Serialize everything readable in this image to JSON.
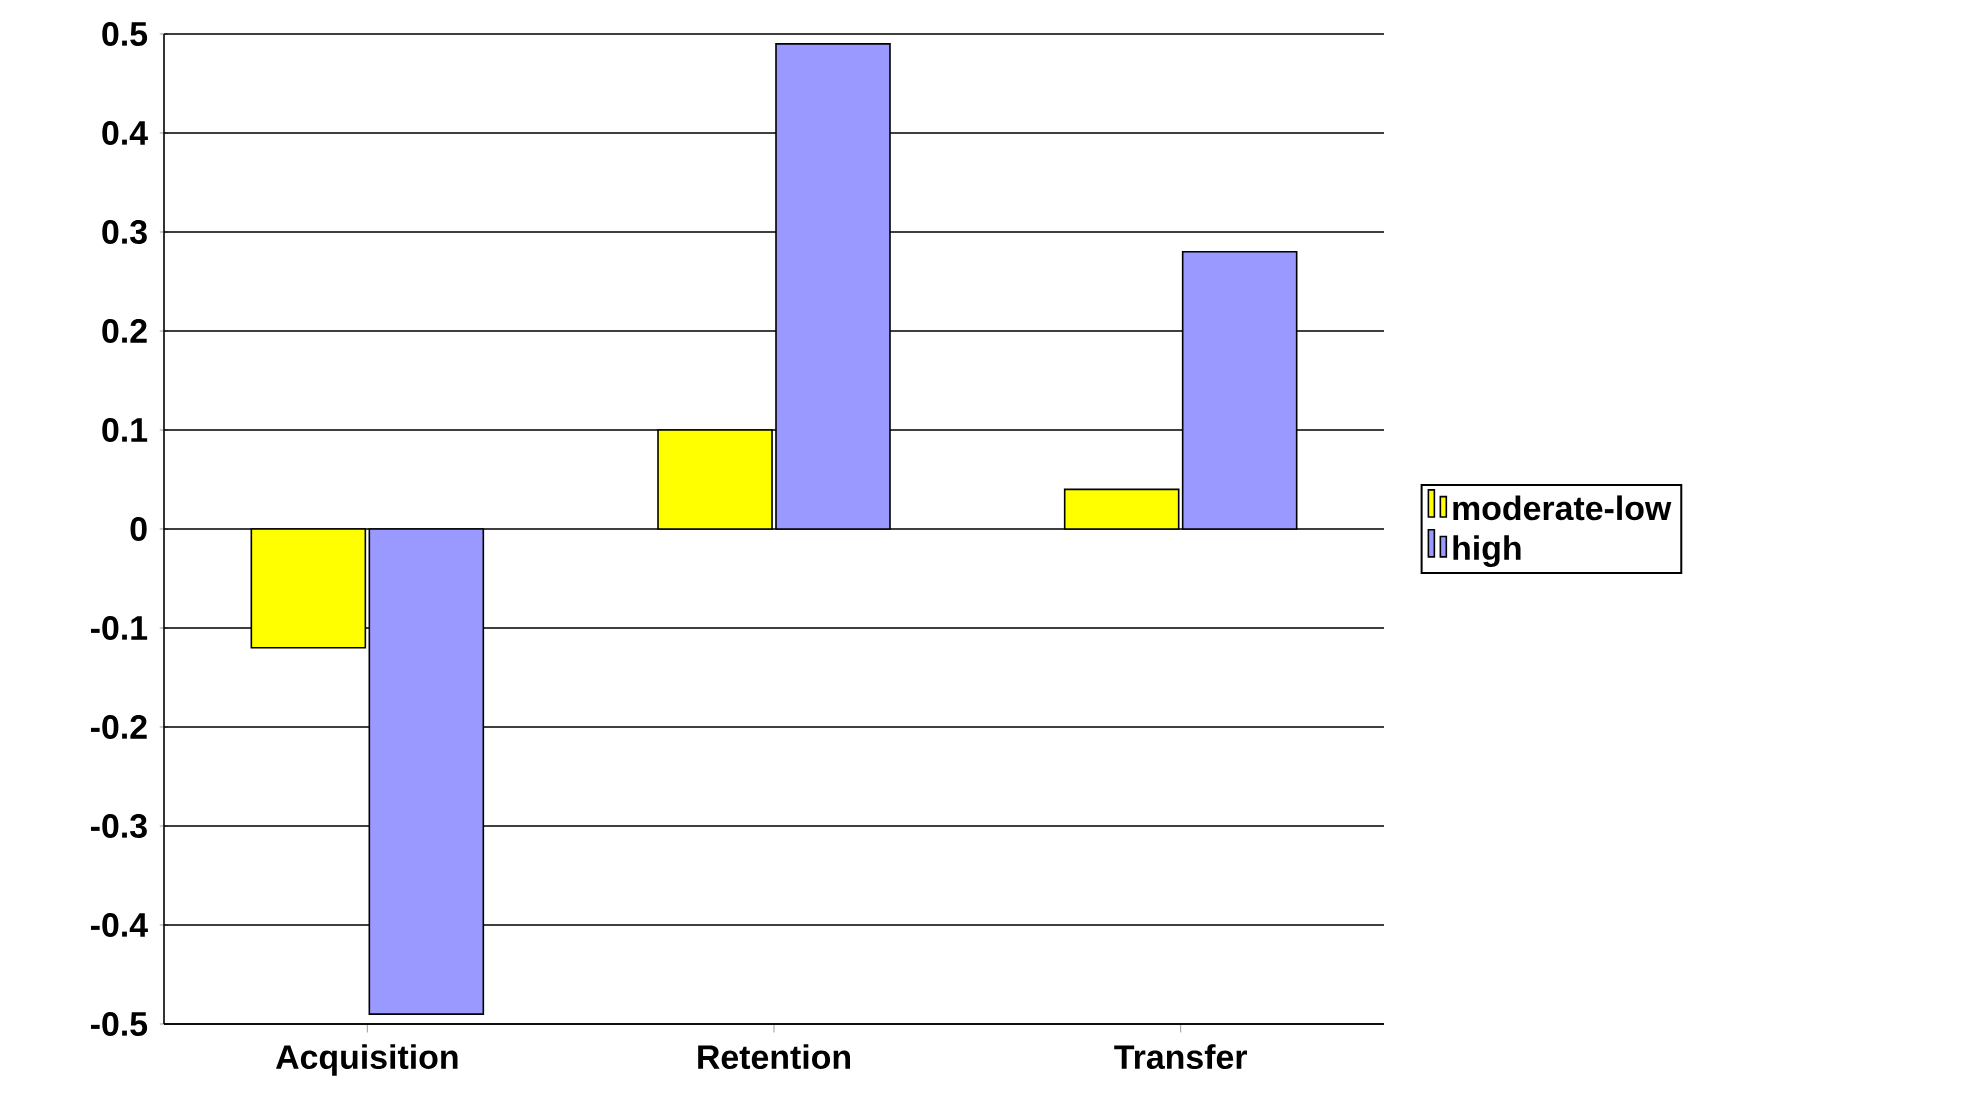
{
  "chart_data": {
    "type": "bar",
    "categories": [
      "Acquisition",
      "Retention",
      "Transfer"
    ],
    "series": [
      {
        "name": "moderate-low",
        "color": "#ffff00",
        "values": [
          -0.12,
          0.1,
          0.04
        ]
      },
      {
        "name": "high",
        "color": "#9999ff",
        "values": [
          -0.49,
          0.49,
          0.28
        ]
      }
    ],
    "ylim": [
      -0.5,
      0.5
    ],
    "yticks": [
      -0.5,
      -0.4,
      -0.3,
      -0.2,
      -0.1,
      0,
      0.1,
      0.2,
      0.3,
      0.4,
      0.5
    ],
    "grid": "y",
    "legend": "right"
  }
}
